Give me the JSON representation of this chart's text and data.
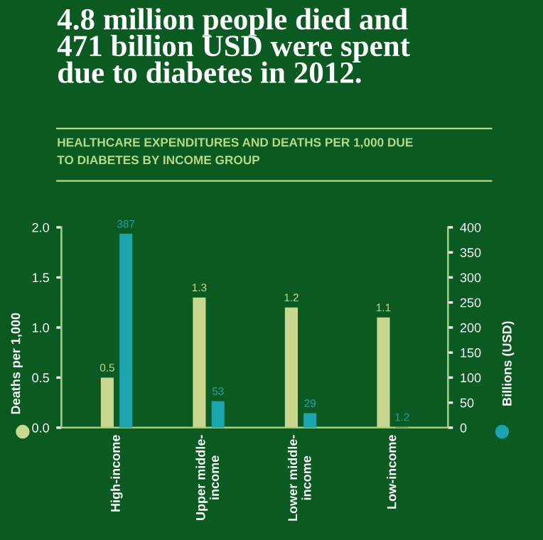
{
  "chart_data": {
    "type": "bar",
    "title": "4.8 million people died and\n471 billion USD were spent\ndue to diabetes in 2012.",
    "subtitle": "HEALTHCARE EXPENDITURES AND DEATHS PER 1,000 DUE\nTO DIABETES BY INCOME GROUP",
    "categories": [
      "High-income",
      "Upper middle-\nincome",
      "Lower middle-\nincome",
      "Low-income"
    ],
    "series": [
      {
        "color": "#c9d88e",
        "values": [
          0.5,
          1.3,
          1.2,
          1.1
        ]
      },
      {
        "color": "#1ba5ae",
        "axis": "y2",
        "values": [
          387,
          53,
          29,
          1.2
        ]
      }
    ],
    "ylabel": "Deaths per 1,000",
    "y2label": "Billions (USD)",
    "ylim": [
      0,
      2.0
    ],
    "yticks": [
      {
        "value": 0,
        "label": "0.0"
      },
      {
        "value": 0.5,
        "label": "0.5"
      },
      {
        "value": 1.0,
        "label": "1.0"
      },
      {
        "value": 1.5,
        "label": "1.5"
      },
      {
        "value": 2.0,
        "label": "2.0"
      }
    ],
    "y2lim": [
      0,
      400
    ],
    "y2ticks": [
      0,
      50,
      100,
      150,
      200,
      250,
      300,
      350,
      400
    ],
    "data_labels": true,
    "grid": false,
    "legend": false
  }
}
